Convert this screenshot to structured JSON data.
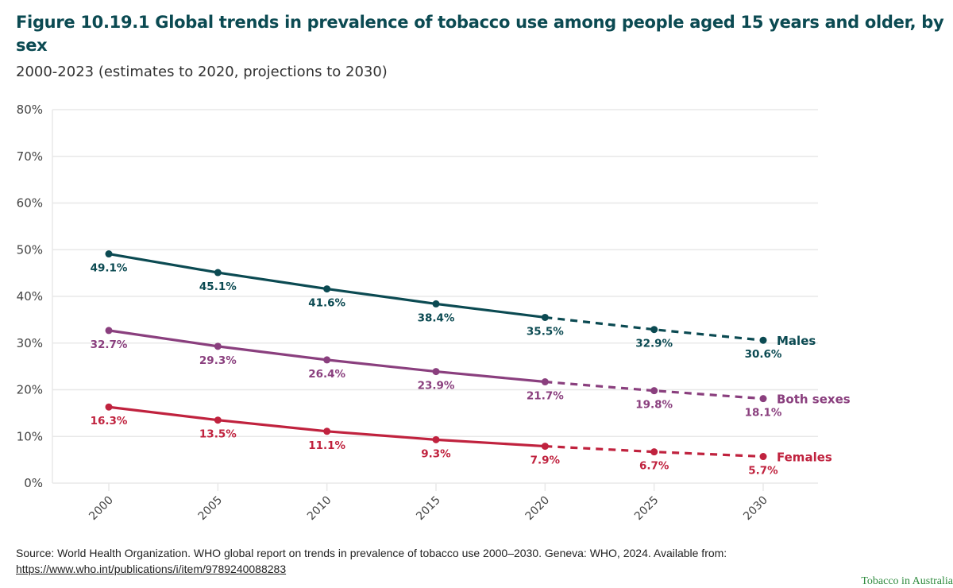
{
  "header": {
    "title": "Figure 10.19.1 Global trends in prevalence of tobacco use among people aged 15 years and older, by sex",
    "subtitle": "2000-2023 (estimates to 2020, projections to 2030)"
  },
  "colors": {
    "males": "#0b4a52",
    "both": "#8a3f7e",
    "females": "#c0223e",
    "grid": "#e8e8e8",
    "title": "#0b4a52"
  },
  "chart_data": {
    "type": "line",
    "title": "Figure 10.19.1 Global trends in prevalence of tobacco use among people aged 15 years and older, by sex",
    "subtitle": "2000-2023 (estimates to 2020, projections to 2030)",
    "xlabel": "",
    "ylabel": "",
    "x": [
      2000,
      2005,
      2010,
      2015,
      2020,
      2025,
      2030
    ],
    "x_tick_labels": [
      "2000",
      "2005",
      "2010",
      "2015",
      "2020",
      "2025",
      "2030"
    ],
    "ylim": [
      0,
      80
    ],
    "y_ticks": [
      0,
      10,
      20,
      30,
      40,
      50,
      60,
      70,
      80
    ],
    "y_tick_labels": [
      "0%",
      "10%",
      "20%",
      "30%",
      "40%",
      "50%",
      "60%",
      "70%",
      "80%"
    ],
    "grid": true,
    "estimate_end": 2020,
    "projection_style": "dashed",
    "legend": "direct-labels-right",
    "series": [
      {
        "key": "males",
        "name": "Males",
        "values": [
          49.1,
          45.1,
          41.6,
          38.4,
          35.5,
          32.9,
          30.6
        ],
        "labels": [
          "49.1%",
          "45.1%",
          "41.6%",
          "38.4%",
          "35.5%",
          "32.9%",
          "30.6%"
        ]
      },
      {
        "key": "both",
        "name": "Both sexes",
        "values": [
          32.7,
          29.3,
          26.4,
          23.9,
          21.7,
          19.8,
          18.1
        ],
        "labels": [
          "32.7%",
          "29.3%",
          "26.4%",
          "23.9%",
          "21.7%",
          "19.8%",
          "18.1%"
        ]
      },
      {
        "key": "females",
        "name": "Females",
        "values": [
          16.3,
          13.5,
          11.1,
          9.3,
          7.9,
          6.7,
          5.7
        ],
        "labels": [
          "16.3%",
          "13.5%",
          "11.1%",
          "9.3%",
          "7.9%",
          "6.7%",
          "5.7%"
        ]
      }
    ]
  },
  "source": {
    "text": "Source: World Health Organization. WHO global report on trends in prevalence of tobacco use 2000–2030. Geneva: WHO, 2024. Available from:",
    "link": "https://www.who.int/publications/i/item/9789240088283"
  },
  "footer": {
    "watermark": "Tobacco in Australia"
  }
}
